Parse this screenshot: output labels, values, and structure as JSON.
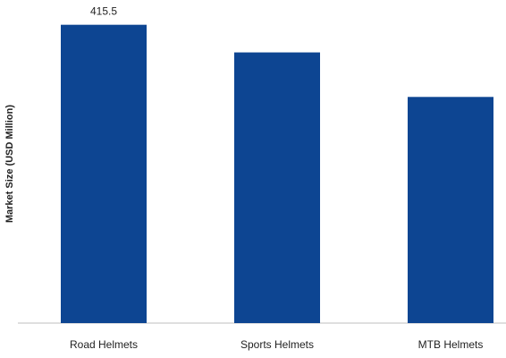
{
  "chart_data": {
    "type": "bar",
    "title": "",
    "xlabel": "",
    "ylabel": "Market Size (USD Million)",
    "categories": [
      "Road Helmets",
      "Sports Helmets",
      "MTB Helmets"
    ],
    "values": [
      415.5,
      377,
      315
    ],
    "data_labels": [
      "415.5",
      "",
      ""
    ],
    "ylim": [
      0,
      450
    ],
    "grid": false,
    "legend": "none",
    "bar_color": "#0d4592",
    "axis_color": "#bfbfbf"
  }
}
